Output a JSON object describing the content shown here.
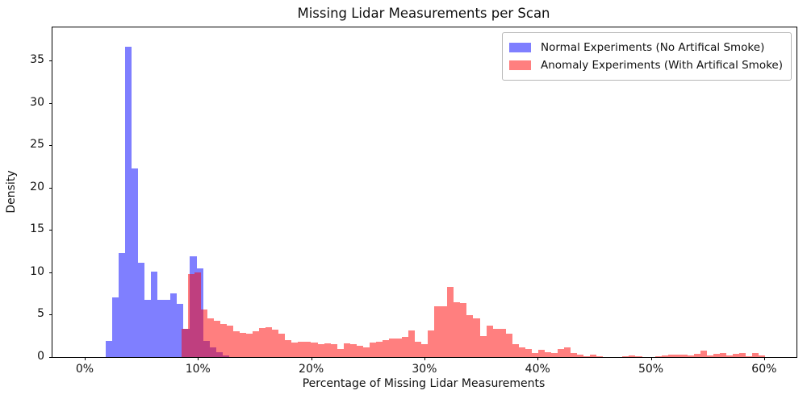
{
  "title": "Missing Lidar Measurements per Scan",
  "xlabel": "Percentage of Missing Lidar Measurements",
  "ylabel": "Density",
  "legend": {
    "entries": [
      {
        "label": "Normal Experiments (No Artifical Smoke)",
        "color": "rgba(0,0,255,0.5)"
      },
      {
        "label": "Anomaly Experiments (With Artifical Smoke)",
        "color": "rgba(255,0,0,0.5)"
      }
    ]
  },
  "axes": {
    "x_range_pct": [
      -2.85,
      62.86
    ],
    "y_range_density": [
      0,
      38.9
    ],
    "x_ticks": [
      {
        "value": 0,
        "label": "0%"
      },
      {
        "value": 10,
        "label": "10%"
      },
      {
        "value": 20,
        "label": "20%"
      },
      {
        "value": 30,
        "label": "30%"
      },
      {
        "value": 40,
        "label": "40%"
      },
      {
        "value": 50,
        "label": "50%"
      },
      {
        "value": 60,
        "label": "60%"
      }
    ],
    "y_ticks": [
      {
        "value": 0,
        "label": "0"
      },
      {
        "value": 5,
        "label": "5"
      },
      {
        "value": 10,
        "label": "10"
      },
      {
        "value": 15,
        "label": "15"
      },
      {
        "value": 20,
        "label": "20"
      },
      {
        "value": 25,
        "label": "25"
      },
      {
        "value": 30,
        "label": "30"
      },
      {
        "value": 35,
        "label": "35"
      }
    ]
  },
  "chart_data": {
    "type": "bar",
    "subtype": "overlaid-density-histograms",
    "title": "Missing Lidar Measurements per Scan",
    "xlabel": "Percentage of Missing Lidar Measurements",
    "ylabel": "Density",
    "xlim_pct": [
      -2.85,
      62.86
    ],
    "ylim_density": [
      0,
      38.9
    ],
    "grid": false,
    "legend_position": "upper right",
    "overlap_note": "red drawn over blue with 0.5 alpha; overlap renders magenta #bf4080",
    "series": [
      {
        "name": "Normal Experiments (No Artifical Smoke)",
        "color": "rgba(0,0,255,0.5)",
        "bin_start_pct": 1.85,
        "bin_width_pct": 0.573,
        "densities": [
          1.9,
          7.0,
          12.3,
          36.6,
          22.3,
          11.1,
          6.8,
          10.1,
          6.8,
          6.8,
          7.5,
          6.3,
          3.3,
          11.9,
          10.5,
          1.9,
          1.1,
          0.6,
          0.2
        ]
      },
      {
        "name": "Anomaly Experiments (With Artifical Smoke)",
        "color": "rgba(255,0,0,0.5)",
        "bin_start_pct": 8.53,
        "bin_width_pct": 0.573,
        "densities": [
          3.3,
          9.8,
          10.0,
          5.6,
          4.6,
          4.3,
          3.9,
          3.7,
          3.0,
          2.9,
          2.8,
          3.0,
          3.4,
          3.5,
          3.2,
          2.8,
          2.0,
          1.7,
          1.8,
          1.8,
          1.7,
          1.5,
          1.6,
          1.5,
          1.0,
          1.6,
          1.5,
          1.3,
          1.1,
          1.7,
          1.8,
          2.0,
          2.2,
          2.2,
          2.4,
          3.1,
          1.8,
          1.5,
          3.1,
          6.0,
          6.0,
          8.3,
          6.5,
          6.4,
          4.9,
          4.6,
          2.5,
          3.7,
          3.3,
          3.3,
          2.8,
          1.5,
          1.1,
          1.0,
          0.5,
          0.9,
          0.6,
          0.5,
          1.0,
          1.1,
          0.5,
          0.3,
          0.1,
          0.3,
          0.1,
          0.0,
          0.0,
          0.0,
          0.1,
          0.2,
          0.1,
          0.0,
          0.0,
          0.1,
          0.2,
          0.3,
          0.3,
          0.3,
          0.2,
          0.4,
          0.8,
          0.2,
          0.4,
          0.5,
          0.2,
          0.4,
          0.5,
          0.1,
          0.5,
          0.2
        ]
      }
    ]
  }
}
